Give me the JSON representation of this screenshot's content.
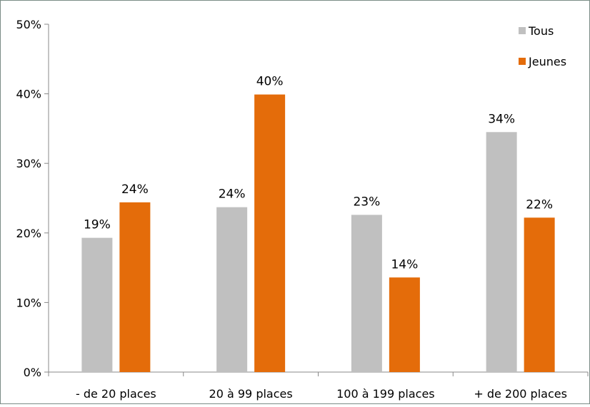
{
  "chart_data": {
    "type": "bar",
    "title": "",
    "xlabel": "",
    "ylabel": "",
    "categories": [
      "- de 20 places",
      "20 à 99 places",
      "100 à 199 places",
      "+ de 200 places"
    ],
    "series": [
      {
        "name": "Tous",
        "color": "#c0c0c0",
        "values": [
          19.3,
          23.7,
          22.6,
          34.5
        ],
        "labels": [
          "19%",
          "24%",
          "23%",
          "34%"
        ]
      },
      {
        "name": "Jeunes",
        "color": "#e46c0a",
        "values": [
          24.4,
          39.9,
          13.6,
          22.2
        ],
        "labels": [
          "24%",
          "40%",
          "14%",
          "22%"
        ]
      }
    ],
    "ylim": [
      0,
      50
    ],
    "yticks": [
      0,
      10,
      20,
      30,
      40,
      50
    ],
    "ytick_labels": [
      "0%",
      "10%",
      "20%",
      "30%",
      "40%",
      "50%"
    ],
    "grid": false,
    "legend_position": "top-right"
  }
}
